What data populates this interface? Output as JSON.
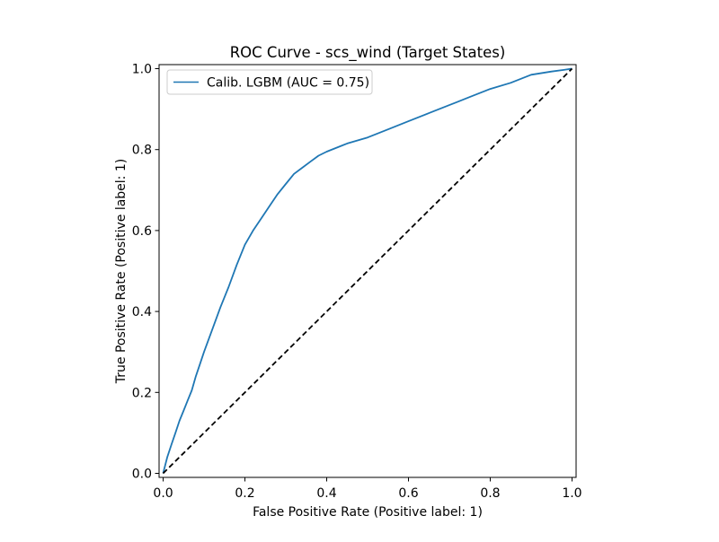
{
  "chart_data": {
    "type": "line",
    "title": "ROC Curve - scs_wind (Target States)",
    "xlabel": "False Positive Rate (Positive label: 1)",
    "ylabel": "True Positive Rate (Positive label: 1)",
    "xlim": [
      -0.01,
      1.01
    ],
    "ylim": [
      -0.01,
      1.01
    ],
    "xticks": [
      0.0,
      0.2,
      0.4,
      0.6,
      0.8,
      1.0
    ],
    "yticks": [
      0.0,
      0.2,
      0.4,
      0.6,
      0.8,
      1.0
    ],
    "xtick_labels": [
      "0.0",
      "0.2",
      "0.4",
      "0.6",
      "0.8",
      "1.0"
    ],
    "ytick_labels": [
      "0.0",
      "0.2",
      "0.4",
      "0.6",
      "0.8",
      "1.0"
    ],
    "grid": false,
    "legend_position": "top-left",
    "series": [
      {
        "name": "Calib. LGBM (AUC = 0.75)",
        "color": "#1f77b4",
        "style": "solid",
        "x": [
          0.0,
          0.005,
          0.01,
          0.02,
          0.03,
          0.04,
          0.05,
          0.06,
          0.07,
          0.08,
          0.09,
          0.1,
          0.12,
          0.14,
          0.16,
          0.18,
          0.2,
          0.22,
          0.24,
          0.26,
          0.28,
          0.3,
          0.32,
          0.34,
          0.36,
          0.38,
          0.4,
          0.45,
          0.5,
          0.55,
          0.6,
          0.65,
          0.7,
          0.75,
          0.8,
          0.85,
          0.9,
          0.95,
          0.98,
          1.0
        ],
        "y": [
          0.0,
          0.02,
          0.04,
          0.07,
          0.1,
          0.13,
          0.155,
          0.18,
          0.205,
          0.24,
          0.27,
          0.3,
          0.355,
          0.41,
          0.46,
          0.515,
          0.565,
          0.6,
          0.63,
          0.66,
          0.69,
          0.715,
          0.74,
          0.755,
          0.77,
          0.785,
          0.795,
          0.815,
          0.83,
          0.85,
          0.87,
          0.89,
          0.91,
          0.93,
          0.95,
          0.965,
          0.985,
          0.993,
          0.997,
          1.0
        ]
      },
      {
        "name": "",
        "color": "#000000",
        "style": "dashed",
        "x": [
          0.0,
          1.0
        ],
        "y": [
          0.0,
          1.0
        ]
      }
    ]
  }
}
